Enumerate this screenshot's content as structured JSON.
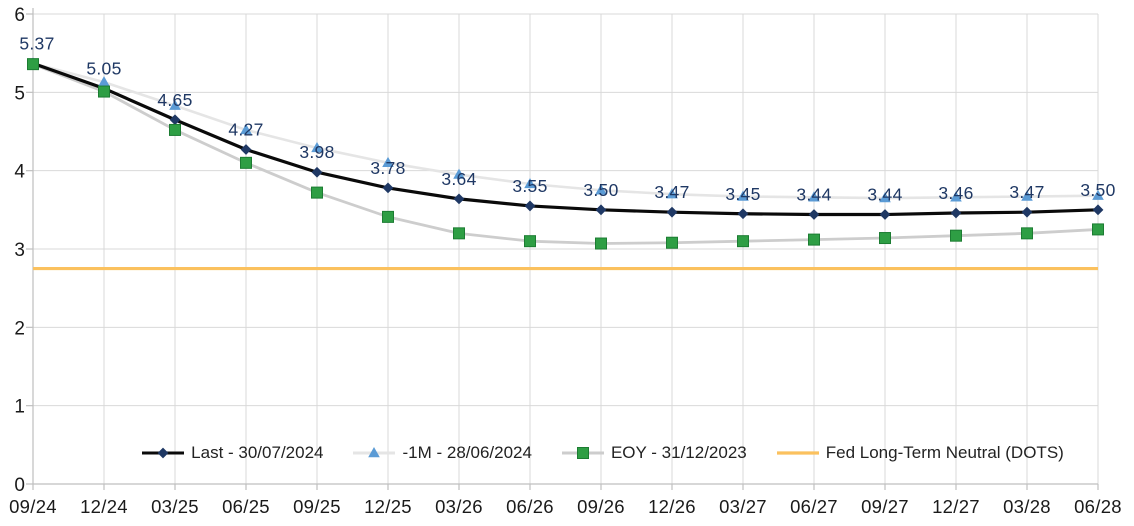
{
  "chart_data": {
    "type": "line",
    "title": "",
    "subtitle": "",
    "categories": [
      "09/24",
      "12/24",
      "03/25",
      "06/25",
      "09/25",
      "12/25",
      "03/26",
      "06/26",
      "09/26",
      "12/26",
      "03/27",
      "06/27",
      "09/27",
      "12/27",
      "03/28",
      "06/28"
    ],
    "ylim": [
      0,
      6
    ],
    "yticks": [
      0,
      1,
      2,
      3,
      4,
      5,
      6
    ],
    "grid": true,
    "legend_position": "bottom-center-inside",
    "background_color": "#ffffff",
    "gridline_color": "#d9d9d9",
    "axis_line_color": "#bfbfbf",
    "axis_text_color": "#1a1a1a",
    "data_label_color": "#1f3864",
    "series": [
      {
        "name": "Last - 30/07/2024",
        "marker": "diamond",
        "marker_color": "#1f3864",
        "line_color": "#0a0a0a",
        "values": [
          5.37,
          5.05,
          4.65,
          4.27,
          3.98,
          3.78,
          3.64,
          3.55,
          3.5,
          3.47,
          3.45,
          3.44,
          3.44,
          3.46,
          3.47,
          3.5
        ],
        "data_labels": [
          "5.37",
          "5.05",
          "4.65",
          "4.27",
          "3.98",
          "3.78",
          "3.64",
          "3.55",
          "3.50",
          "3.47",
          "3.45",
          "3.44",
          "3.44",
          "3.46",
          "3.47",
          "3.50"
        ]
      },
      {
        "name": "-1M - 28/06/2024",
        "marker": "triangle",
        "marker_color": "#5b9bd5",
        "line_color": "#e5e5e5",
        "values": [
          5.37,
          5.13,
          4.83,
          4.52,
          4.29,
          4.1,
          3.95,
          3.83,
          3.75,
          3.7,
          3.67,
          3.66,
          3.65,
          3.66,
          3.67,
          3.68
        ]
      },
      {
        "name": "EOY - 31/12/2023",
        "marker": "square",
        "marker_color": "#2e9e44",
        "marker_border_color": "#1c7c32",
        "line_color": "#cdcdcd",
        "values": [
          5.36,
          5.01,
          4.52,
          4.1,
          3.72,
          3.41,
          3.2,
          3.1,
          3.07,
          3.08,
          3.1,
          3.12,
          3.14,
          3.17,
          3.2,
          3.25
        ]
      },
      {
        "name": "Fed Long-Term Neutral (DOTS)",
        "marker": "none",
        "marker_color": "",
        "line_color": "#fbc15e",
        "constant": 2.75
      }
    ]
  }
}
